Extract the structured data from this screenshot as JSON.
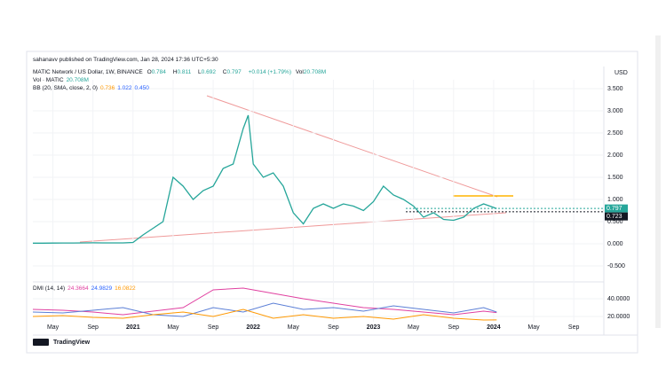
{
  "header": {
    "author": "sahanavv published on TradingView.com, Jan 28, 2024 17:36 UTC+5:30",
    "symbol": "MATIC Network / US Dollar, 1W, BINANCE",
    "ohlc": [
      {
        "label": "O",
        "value": "0.784"
      },
      {
        "label": "H",
        "value": "0.811"
      },
      {
        "label": "L",
        "value": "0.692"
      },
      {
        "label": "C",
        "value": "0.797"
      }
    ],
    "change": "+0.014 (+1.79%)",
    "volume": {
      "label": "Vol",
      "value": "20.708M"
    },
    "vol_indicator": {
      "label": "Vol · MATIC",
      "value": "20.708M"
    },
    "bb": {
      "label": "BB (20, SMA, close, 2, 0)",
      "values": [
        "0.736",
        "1.022",
        "0.450"
      ]
    },
    "dmi": {
      "label": "DMI (14, 14)",
      "values": [
        "24.3664",
        "24.9829",
        "16.0822"
      ]
    },
    "footer": "TradingView"
  },
  "chart_data": [
    {
      "type": "line",
      "axis_label": "USD",
      "x": [
        2,
        3,
        4,
        5,
        6,
        7,
        8,
        9,
        10,
        11,
        12,
        13,
        14,
        15,
        16,
        17,
        18,
        19,
        20,
        21,
        22,
        23,
        23.5,
        24,
        25,
        26,
        27,
        28,
        29,
        30,
        31,
        32,
        33,
        34,
        35,
        36,
        37,
        38,
        39,
        40,
        41,
        42,
        43,
        44,
        45,
        46,
        47,
        48.3
      ],
      "series": [
        {
          "color": "#26a69a",
          "values": [
            0.015,
            0.015,
            0.016,
            0.017,
            0.018,
            0.02,
            0.022,
            0.02,
            0.02,
            0.02,
            0.03,
            0.2,
            0.35,
            0.5,
            1.5,
            1.3,
            1.0,
            1.2,
            1.3,
            1.7,
            1.8,
            2.6,
            2.9,
            1.8,
            1.5,
            1.6,
            1.3,
            0.7,
            0.45,
            0.8,
            0.9,
            0.8,
            0.9,
            0.85,
            0.75,
            0.95,
            1.3,
            1.1,
            1.0,
            0.85,
            0.6,
            0.7,
            0.55,
            0.53,
            0.6,
            0.8,
            0.9,
            0.797
          ]
        }
      ],
      "xlim": [
        2,
        59
      ],
      "xticks": [
        {
          "value": 4,
          "label": "May"
        },
        {
          "value": 8,
          "label": "Sep"
        },
        {
          "value": 12,
          "label": "2021"
        },
        {
          "value": 16,
          "label": "May"
        },
        {
          "value": 20,
          "label": "Sep"
        },
        {
          "value": 24,
          "label": "2022"
        },
        {
          "value": 28,
          "label": "May"
        },
        {
          "value": 32,
          "label": "Sep"
        },
        {
          "value": 36,
          "label": "2023"
        },
        {
          "value": 40,
          "label": "May"
        },
        {
          "value": 44,
          "label": "Sep"
        },
        {
          "value": 48,
          "label": "2024"
        },
        {
          "value": 52,
          "label": "May"
        },
        {
          "value": 56,
          "label": "Sep"
        }
      ],
      "ylim": [
        -0.7,
        3.7
      ],
      "yticks": [
        {
          "value": 3.5,
          "label": "3.500"
        },
        {
          "value": 3,
          "label": "3.000"
        },
        {
          "value": 2.5,
          "label": "2.500"
        },
        {
          "value": 2,
          "label": "2.000"
        },
        {
          "value": 1.5,
          "label": "1.500"
        },
        {
          "value": 1,
          "label": "1.000"
        },
        {
          "value": 0.5,
          "label": "0.500"
        },
        {
          "value": 0,
          "label": "0.000"
        },
        {
          "value": -0.5,
          "label": "-0.500"
        }
      ],
      "price_labels": [
        {
          "value": 0.797,
          "label": "0.797",
          "color": "#26a69a"
        },
        {
          "value": 0.723,
          "label": "0.723",
          "color": "#131722"
        }
      ]
    },
    {
      "type": "line",
      "x": [
        2,
        5,
        8,
        11,
        14,
        17,
        20,
        23,
        26,
        29,
        32,
        35,
        38,
        41,
        44,
        47,
        48.3
      ],
      "series": [
        {
          "color": "#e040a0",
          "values": [
            28,
            27,
            25,
            22,
            26,
            30,
            50,
            52,
            46,
            40,
            35,
            30,
            28,
            25,
            22,
            26,
            24.3664
          ]
        },
        {
          "color": "#5b7fd6",
          "values": [
            25,
            24,
            27,
            30,
            22,
            20,
            30,
            25,
            35,
            28,
            30,
            26,
            32,
            28,
            24,
            30,
            24.9829
          ]
        },
        {
          "color": "#ff9800",
          "values": [
            20,
            21,
            19,
            18,
            22,
            25,
            20,
            28,
            18,
            22,
            18,
            20,
            17,
            22,
            18,
            16,
            16.0822
          ]
        }
      ],
      "xlim": [
        2,
        59
      ],
      "ylim": [
        14,
        58
      ],
      "yticks": [
        {
          "value": 40,
          "label": "40.0000"
        },
        {
          "value": 20,
          "label": "20.0000"
        }
      ]
    }
  ]
}
